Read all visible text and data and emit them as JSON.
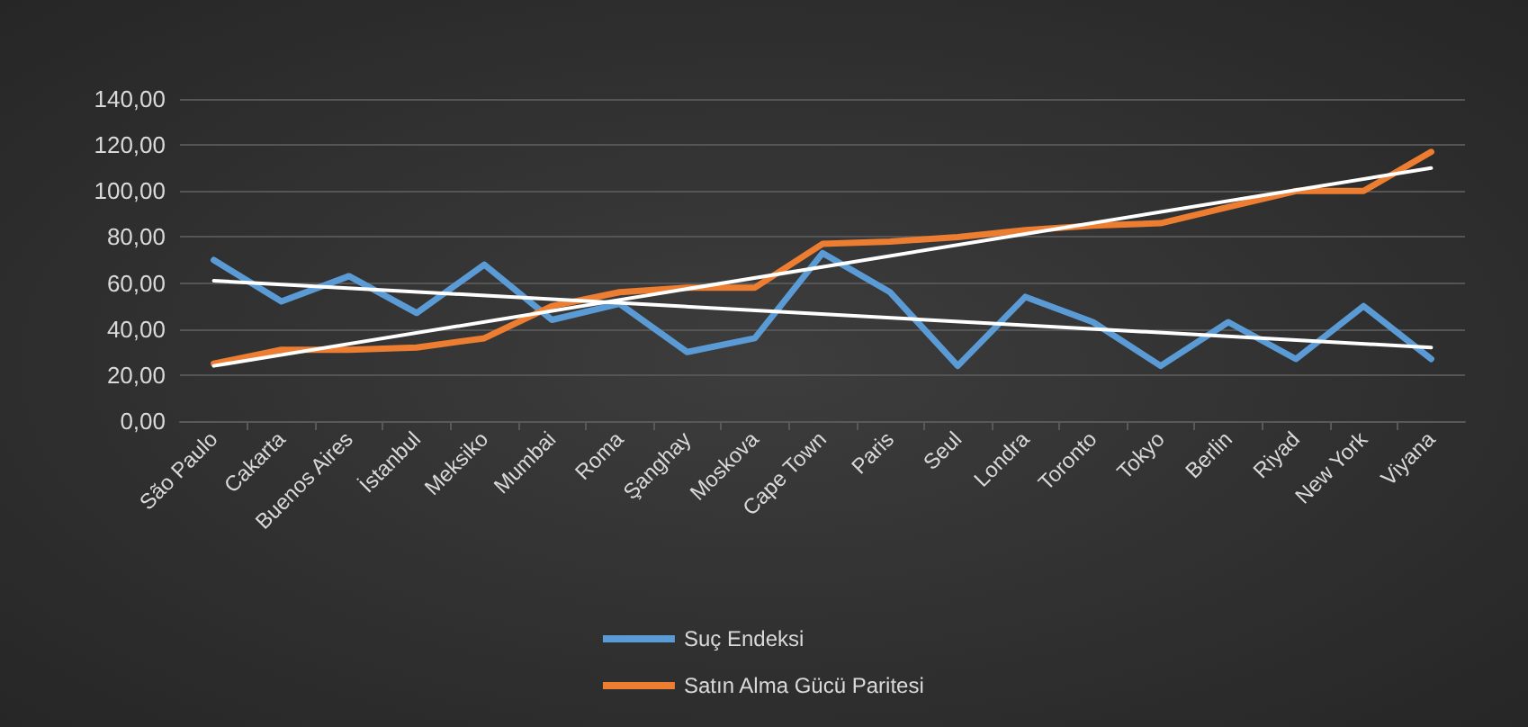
{
  "chart_data": {
    "type": "line",
    "categories": [
      "São Paulo",
      "Cakarta",
      "Buenos Aires",
      "İstanbul",
      "Meksiko",
      "Mumbai",
      "Roma",
      "Şanghay",
      "Moskova",
      "Cape Town",
      "Paris",
      "Seul",
      "Londra",
      "Toronto",
      "Tokyo",
      "Berlin",
      "Riyad",
      "New York",
      "Viyana"
    ],
    "series": [
      {
        "name": "Suç Endeksi",
        "color": "#5b9bd5",
        "values": [
          70,
          52,
          63,
          47,
          68,
          44,
          51,
          30,
          36,
          73,
          56,
          24,
          54,
          43,
          24,
          43,
          27,
          50,
          27
        ]
      },
      {
        "name": "Satın Alma Gücü Paritesi",
        "color": "#ed7d31",
        "values": [
          25,
          31,
          31,
          32,
          36,
          50,
          56,
          58,
          58,
          77,
          78,
          80,
          83,
          85,
          86,
          93,
          100,
          100,
          117
        ]
      },
      {
        "color": "#ffffff",
        "x": [
          "São Paulo",
          "Viyana"
        ],
        "values": [
          61,
          32
        ]
      },
      {
        "color": "#ffffff",
        "x": [
          "São Paulo",
          "Viyana"
        ],
        "values": [
          24,
          110
        ]
      }
    ],
    "ylim": [
      0,
      140
    ],
    "yticks": [
      {
        "value": 0,
        "label": "0,00"
      },
      {
        "value": 20,
        "label": "20,00"
      },
      {
        "value": 40,
        "label": "40,00"
      },
      {
        "value": 60,
        "label": "60,00"
      },
      {
        "value": 80,
        "label": "80,00"
      },
      {
        "value": 100,
        "label": "100,00"
      },
      {
        "value": 120,
        "label": "120,00"
      },
      {
        "value": 140,
        "label": "140,00"
      }
    ],
    "grid": "y",
    "legend": "bottom",
    "marker": "none",
    "line_style": "solid"
  }
}
